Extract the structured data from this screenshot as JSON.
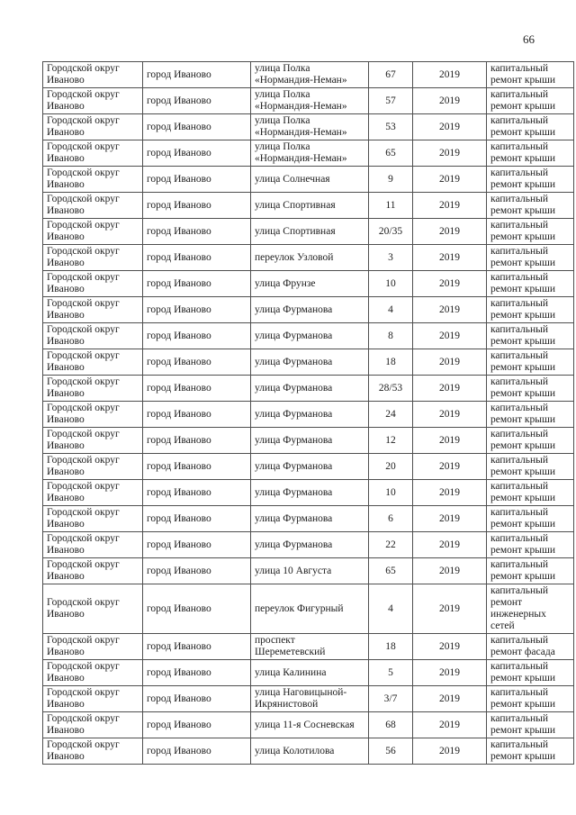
{
  "page_number": "66",
  "table": {
    "column_keys": [
      "district",
      "city",
      "street",
      "house",
      "year",
      "work"
    ],
    "rows": [
      {
        "district": "Городской округ Иваново",
        "city": "город Иваново",
        "street": "улица Полка «Нормандия-Неман»",
        "house": "67",
        "year": "2019",
        "work": "капитальный ремонт крыши"
      },
      {
        "district": "Городской округ Иваново",
        "city": "город Иваново",
        "street": "улица Полка «Нормандия-Неман»",
        "house": "57",
        "year": "2019",
        "work": "капитальный ремонт крыши"
      },
      {
        "district": "Городской округ Иваново",
        "city": "город Иваново",
        "street": "улица Полка «Нормандия-Неман»",
        "house": "53",
        "year": "2019",
        "work": "капитальный ремонт крыши"
      },
      {
        "district": "Городской округ Иваново",
        "city": "город Иваново",
        "street": "улица Полка «Нормандия-Неман»",
        "house": "65",
        "year": "2019",
        "work": "капитальный ремонт крыши"
      },
      {
        "district": "Городской округ Иваново",
        "city": "город Иваново",
        "street": "улица Солнечная",
        "house": "9",
        "year": "2019",
        "work": "капитальный ремонт крыши"
      },
      {
        "district": "Городской округ Иваново",
        "city": "город Иваново",
        "street": "улица Спортивная",
        "house": "11",
        "year": "2019",
        "work": "капитальный ремонт крыши"
      },
      {
        "district": "Городской округ Иваново",
        "city": "город Иваново",
        "street": "улица Спортивная",
        "house": "20/35",
        "year": "2019",
        "work": "капитальный ремонт крыши"
      },
      {
        "district": "Городской округ Иваново",
        "city": "город Иваново",
        "street": "переулок Узловой",
        "house": "3",
        "year": "2019",
        "work": "капитальный ремонт крыши"
      },
      {
        "district": "Городской округ Иваново",
        "city": "город Иваново",
        "street": "улица Фрунзе",
        "house": "10",
        "year": "2019",
        "work": "капитальный ремонт крыши"
      },
      {
        "district": "Городской округ Иваново",
        "city": "город Иваново",
        "street": "улица Фурманова",
        "house": "4",
        "year": "2019",
        "work": "капитальный ремонт крыши"
      },
      {
        "district": "Городской округ Иваново",
        "city": "город Иваново",
        "street": "улица Фурманова",
        "house": "8",
        "year": "2019",
        "work": "капитальный ремонт крыши"
      },
      {
        "district": "Городской округ Иваново",
        "city": "город Иваново",
        "street": "улица Фурманова",
        "house": "18",
        "year": "2019",
        "work": "капитальный ремонт крыши"
      },
      {
        "district": "Городской округ Иваново",
        "city": "город Иваново",
        "street": "улица Фурманова",
        "house": "28/53",
        "year": "2019",
        "work": "капитальный ремонт крыши"
      },
      {
        "district": "Городской округ Иваново",
        "city": "город Иваново",
        "street": "улица Фурманова",
        "house": "24",
        "year": "2019",
        "work": "капитальный ремонт крыши"
      },
      {
        "district": "Городской округ Иваново",
        "city": "город Иваново",
        "street": "улица Фурманова",
        "house": "12",
        "year": "2019",
        "work": "капитальный ремонт крыши"
      },
      {
        "district": "Городской округ Иваново",
        "city": "город Иваново",
        "street": "улица Фурманова",
        "house": "20",
        "year": "2019",
        "work": "капитальный ремонт крыши"
      },
      {
        "district": "Городской округ Иваново",
        "city": "город Иваново",
        "street": "улица Фурманова",
        "house": "10",
        "year": "2019",
        "work": "капитальный ремонт крыши"
      },
      {
        "district": "Городской округ Иваново",
        "city": "город Иваново",
        "street": "улица Фурманова",
        "house": "6",
        "year": "2019",
        "work": "капитальный ремонт крыши"
      },
      {
        "district": "Городской округ Иваново",
        "city": "город Иваново",
        "street": "улица Фурманова",
        "house": "22",
        "year": "2019",
        "work": "капитальный ремонт крыши"
      },
      {
        "district": "Городской округ Иваново",
        "city": "город Иваново",
        "street": "улица 10 Августа",
        "house": "65",
        "year": "2019",
        "work": "капитальный ремонт крыши"
      },
      {
        "district": "Городской округ Иваново",
        "city": "город Иваново",
        "street": "переулок Фигурный",
        "house": "4",
        "year": "2019",
        "work": "капитальный ремонт инженерных сетей"
      },
      {
        "district": "Городской округ Иваново",
        "city": "город Иваново",
        "street": "проспект Шереметевский",
        "house": "18",
        "year": "2019",
        "work": "капитальный ремонт фасада"
      },
      {
        "district": "Городской округ Иваново",
        "city": "город Иваново",
        "street": "улица Калинина",
        "house": "5",
        "year": "2019",
        "work": "капитальный ремонт крыши"
      },
      {
        "district": "Городской округ Иваново",
        "city": "город Иваново",
        "street": "улица Наговицыной-Икрянистовой",
        "house": "3/7",
        "year": "2019",
        "work": "капитальный ремонт крыши"
      },
      {
        "district": "Городской округ Иваново",
        "city": "город Иваново",
        "street": "улица 11-я Сосневская",
        "house": "68",
        "year": "2019",
        "work": "капитальный ремонт крыши"
      },
      {
        "district": "Городской округ Иваново",
        "city": "город Иваново",
        "street": "улица Колотилова",
        "house": "56",
        "year": "2019",
        "work": "капитальный ремонт крыши"
      }
    ]
  }
}
